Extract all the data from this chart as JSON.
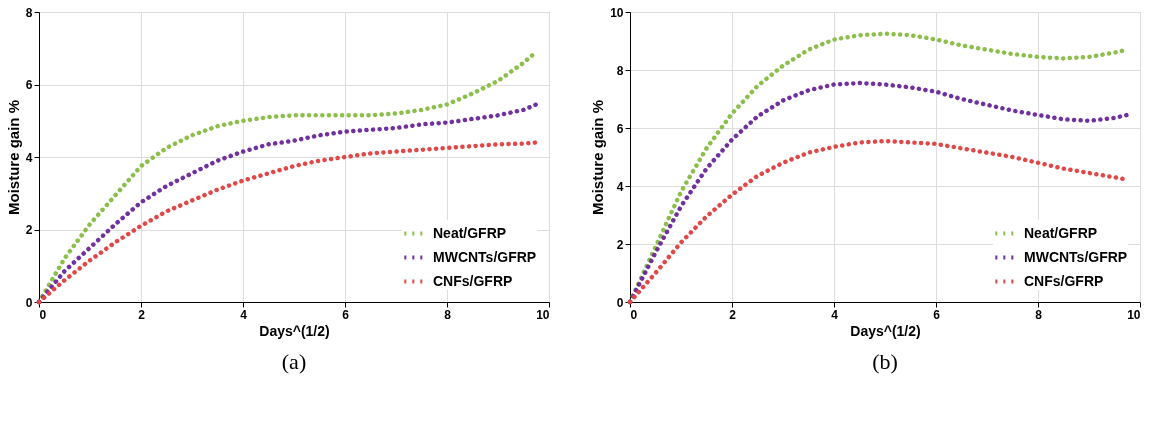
{
  "chart_data": [
    {
      "type": "line",
      "title": "(a)",
      "xlabel": "Days^(1/2)",
      "ylabel": "Moisture gain %",
      "x": [
        0,
        0.5,
        1,
        1.5,
        2,
        2.5,
        3,
        3.5,
        4,
        4.5,
        5,
        5.5,
        6,
        6.5,
        7,
        7.5,
        8,
        8.5,
        9,
        9.5,
        9.75
      ],
      "series": [
        {
          "name": "Neat/GFRP",
          "color": "#8cbf4a",
          "values": [
            0,
            1.2,
            2.15,
            2.95,
            3.75,
            4.25,
            4.6,
            4.85,
            5.0,
            5.1,
            5.15,
            5.15,
            5.15,
            5.15,
            5.2,
            5.3,
            5.45,
            5.75,
            6.1,
            6.6,
            6.9
          ]
        },
        {
          "name": "MWCNTs/GFRP",
          "color": "#7030a0",
          "values": [
            0,
            0.85,
            1.5,
            2.15,
            2.75,
            3.2,
            3.55,
            3.9,
            4.15,
            4.35,
            4.45,
            4.6,
            4.7,
            4.75,
            4.8,
            4.9,
            4.95,
            5.05,
            5.15,
            5.3,
            5.45
          ]
        },
        {
          "name": "CNFs/GFRP",
          "color": "#e04848",
          "values": [
            0,
            0.6,
            1.15,
            1.65,
            2.1,
            2.5,
            2.8,
            3.1,
            3.35,
            3.55,
            3.75,
            3.9,
            4.0,
            4.1,
            4.15,
            4.2,
            4.25,
            4.3,
            4.35,
            4.37,
            4.4
          ]
        }
      ],
      "xlim": [
        0,
        10
      ],
      "xticks": [
        0,
        2,
        4,
        6,
        8,
        10
      ],
      "ylim": [
        0,
        8
      ],
      "yticks": [
        0,
        2,
        4,
        6,
        8
      ],
      "grid": true,
      "legend": "bottom right",
      "line_style": "dotted"
    },
    {
      "type": "line",
      "title": "(b)",
      "xlabel": "Days^(1/2)",
      "ylabel": "Moisture gain %",
      "x": [
        0,
        0.5,
        1,
        1.5,
        2,
        2.5,
        3,
        3.5,
        4,
        4.5,
        5,
        5.5,
        6,
        6.5,
        7,
        7.5,
        8,
        8.5,
        9,
        9.5,
        9.75
      ],
      "series": [
        {
          "name": "Neat/GFRP",
          "color": "#8cbf4a",
          "values": [
            0,
            1.9,
            3.8,
            5.3,
            6.5,
            7.45,
            8.15,
            8.7,
            9.05,
            9.2,
            9.25,
            9.2,
            9.05,
            8.85,
            8.7,
            8.55,
            8.45,
            8.4,
            8.45,
            8.6,
            8.7
          ]
        },
        {
          "name": "MWCNTs/GFRP",
          "color": "#7030a0",
          "values": [
            0,
            1.7,
            3.3,
            4.6,
            5.6,
            6.4,
            6.95,
            7.3,
            7.5,
            7.55,
            7.5,
            7.4,
            7.25,
            7.0,
            6.8,
            6.6,
            6.45,
            6.3,
            6.25,
            6.35,
            6.45
          ]
        },
        {
          "name": "CNFs/GFRP",
          "color": "#e04848",
          "values": [
            0,
            1.0,
            2.05,
            2.95,
            3.7,
            4.35,
            4.8,
            5.15,
            5.35,
            5.5,
            5.55,
            5.5,
            5.45,
            5.3,
            5.15,
            5.0,
            4.8,
            4.6,
            4.45,
            4.3,
            4.22
          ]
        }
      ],
      "xlim": [
        0,
        10
      ],
      "xticks": [
        0,
        2,
        4,
        6,
        8,
        10
      ],
      "ylim": [
        0,
        10
      ],
      "yticks": [
        0,
        2,
        4,
        6,
        8,
        10
      ],
      "grid": true,
      "legend": "bottom right",
      "line_style": "dotted"
    }
  ]
}
